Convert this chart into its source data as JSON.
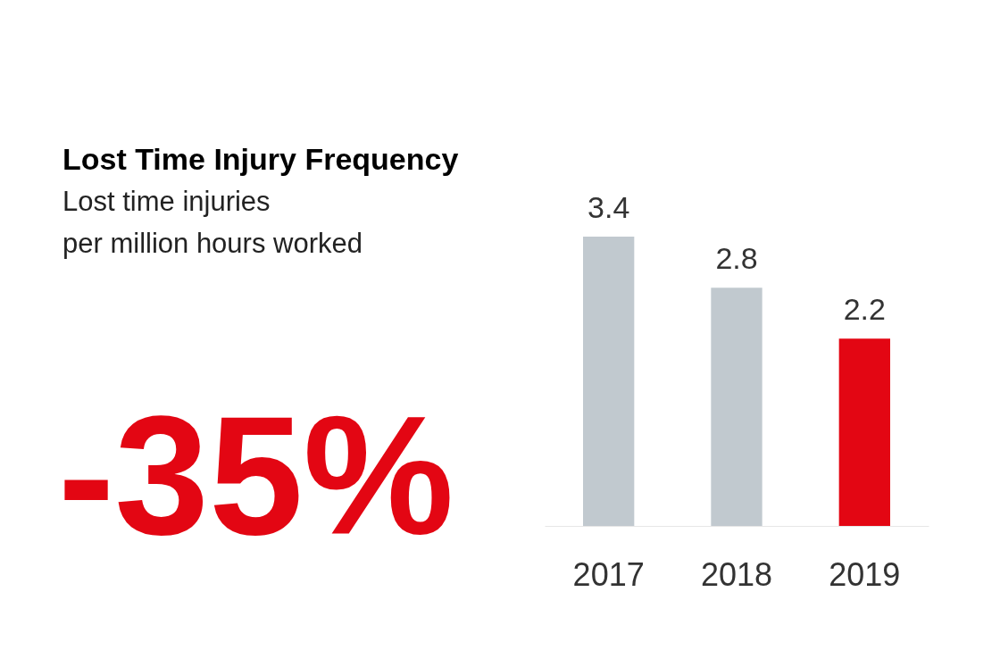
{
  "chart_data": {
    "type": "bar",
    "title": "Lost Time Injury Frequency",
    "subtitle": "Lost time injuries\nper million hours worked",
    "categories": [
      "2017",
      "2018",
      "2019"
    ],
    "values": [
      3.4,
      2.8,
      2.2
    ],
    "colors": [
      "#c1c9cf",
      "#c1c9cf",
      "#e30613"
    ],
    "data_labels": true,
    "annotations": [
      "-35%"
    ]
  }
}
